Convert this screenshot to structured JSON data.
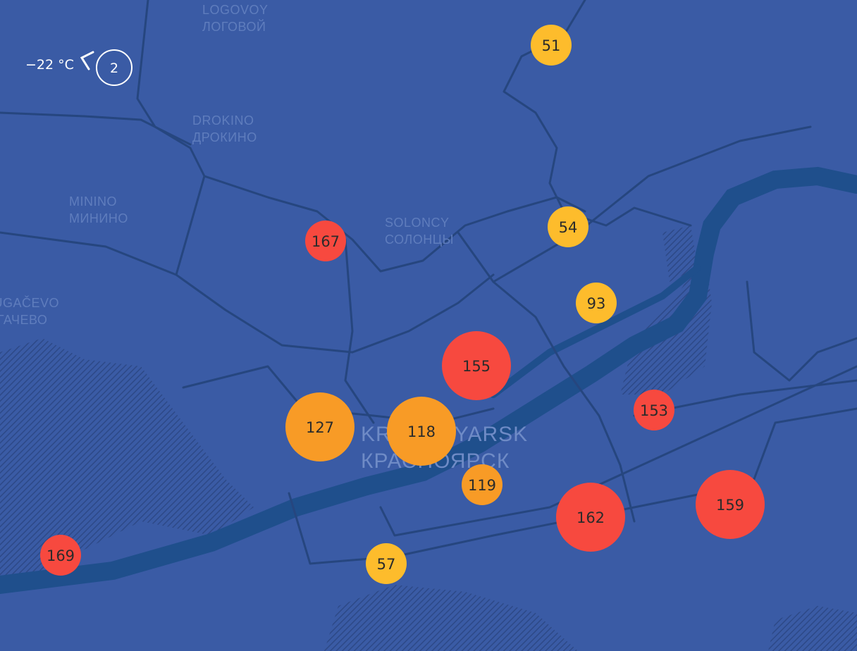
{
  "weather": {
    "temperature": "−22 °C",
    "wind": "2"
  },
  "places": [
    {
      "latin": "LOGOVOY",
      "cyrillic": "ЛОГОВОЙ"
    },
    {
      "latin": "DROKINO",
      "cyrillic": "ДРОКИНО"
    },
    {
      "latin": "MININO",
      "cyrillic": "МИНИНО"
    },
    {
      "latin": "SOLONCY",
      "cyrillic": "СОЛОНЦЫ"
    },
    {
      "latin": "BUGAČEVO",
      "cyrillic": "БУГАЧЕВО"
    },
    {
      "latin": "KRASNOYARSK",
      "cyrillic": "КРАСНОЯРСК"
    }
  ],
  "markers": [
    {
      "value": 51,
      "color": "#fdbc2c"
    },
    {
      "value": 54,
      "color": "#fdbc2c"
    },
    {
      "value": 93,
      "color": "#fdbc2c"
    },
    {
      "value": 167,
      "color": "#f7493f"
    },
    {
      "value": 155,
      "color": "#f7493f"
    },
    {
      "value": 127,
      "color": "#f89b26"
    },
    {
      "value": 118,
      "color": "#f89b26"
    },
    {
      "value": 119,
      "color": "#f89b26"
    },
    {
      "value": 153,
      "color": "#f7493f"
    },
    {
      "value": 162,
      "color": "#f7493f"
    },
    {
      "value": 159,
      "color": "#f7493f"
    },
    {
      "value": 169,
      "color": "#f7493f"
    },
    {
      "value": 57,
      "color": "#fdbc2c"
    }
  ]
}
